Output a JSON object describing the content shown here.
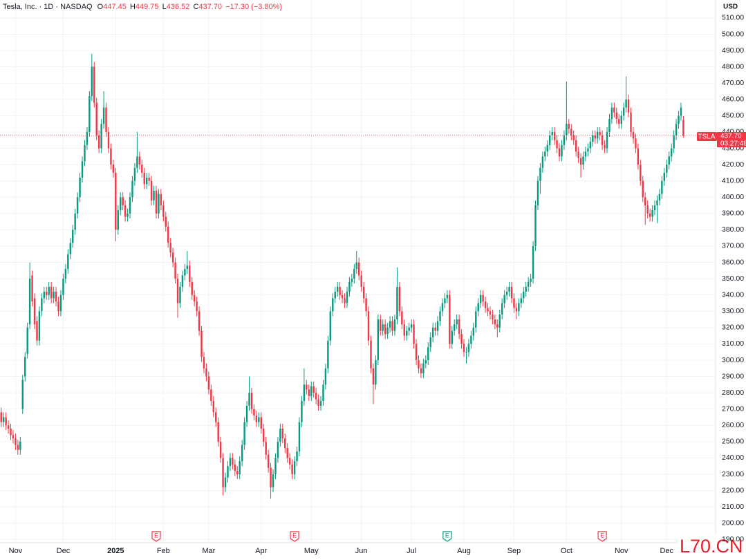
{
  "chart_data": {
    "type": "candlestick",
    "header": {
      "symbol": "Tesla, Inc. · 1D · NASDAQ",
      "o_label": "O",
      "o": "447.45",
      "h_label": "H",
      "h": "449.75",
      "l_label": "L",
      "l": "436.52",
      "c_label": "C",
      "c": "437.70",
      "change": "−17.30 (−3.80%)"
    },
    "currency": "USD",
    "price_tag": {
      "symbol": "TSLA",
      "price": "437.70",
      "countdown": "03:27:48"
    },
    "watermark": "L70.CN",
    "up_color": "#089981",
    "down_color": "#f23645",
    "open": [
      268,
      262,
      265,
      260,
      258,
      254,
      252,
      248,
      245,
      270,
      290,
      304,
      322,
      352,
      338,
      324,
      312,
      330,
      338,
      342,
      340,
      345,
      338,
      342,
      336,
      330,
      340,
      350,
      356,
      365,
      372,
      380,
      390,
      400,
      412,
      422,
      432,
      440,
      462,
      480,
      458,
      438,
      430,
      445,
      455,
      440,
      430,
      420,
      415,
      380,
      392,
      400,
      395,
      388,
      390,
      400,
      410,
      418,
      425,
      420,
      415,
      408,
      412,
      410,
      398,
      404,
      390,
      402,
      395,
      388,
      382,
      372,
      366,
      360,
      350,
      335,
      345,
      352,
      356,
      358,
      348,
      340,
      336,
      330,
      318,
      302,
      295,
      290,
      282,
      275,
      268,
      262,
      250,
      240,
      222,
      228,
      235,
      240,
      236,
      232,
      230,
      238,
      248,
      262,
      272,
      280,
      270,
      266,
      262,
      265,
      258,
      250,
      242,
      234,
      222,
      230,
      240,
      250,
      258,
      252,
      246,
      240,
      236,
      230,
      238,
      244,
      262,
      275,
      285,
      282,
      278,
      284,
      280,
      276,
      272,
      275,
      285,
      295,
      312,
      330,
      338,
      342,
      345,
      340,
      338,
      335,
      342,
      348,
      350,
      356,
      360,
      352,
      345,
      338,
      330,
      312,
      295,
      285,
      300,
      325,
      318,
      322,
      316,
      320,
      324,
      318,
      325,
      345,
      330,
      322,
      315,
      318,
      320,
      322,
      310,
      300,
      295,
      292,
      298,
      300,
      308,
      314,
      320,
      318,
      324,
      330,
      335,
      338,
      340,
      310,
      318,
      322,
      325,
      316,
      310,
      305,
      305,
      310,
      315,
      320,
      330,
      335,
      340,
      336,
      332,
      330,
      328,
      325,
      322,
      320,
      328,
      335,
      340,
      342,
      345,
      338,
      332,
      330,
      335,
      338,
      342,
      345,
      348,
      350,
      370,
      395,
      410,
      418,
      425,
      428,
      432,
      438,
      440,
      435,
      430,
      425,
      432,
      438,
      445,
      442,
      438,
      435,
      428,
      424,
      420,
      425,
      428,
      430,
      434,
      438,
      436,
      440,
      438,
      432,
      430,
      440,
      448,
      455,
      452,
      448,
      445,
      450,
      455,
      460,
      452,
      440,
      436,
      430,
      420,
      410,
      400,
      395,
      390,
      388,
      392,
      395,
      398,
      402,
      410,
      415,
      420,
      425,
      430,
      438,
      445,
      450,
      447.45
    ],
    "high": [
      271,
      268,
      268,
      263,
      261,
      257,
      255,
      251,
      253,
      291,
      305,
      323,
      360,
      355,
      341,
      327,
      333,
      341,
      345,
      345,
      348,
      348,
      345,
      345,
      339,
      343,
      353,
      359,
      368,
      375,
      383,
      393,
      403,
      415,
      425,
      435,
      443,
      465,
      488,
      483,
      461,
      441,
      448,
      465,
      458,
      443,
      433,
      423,
      418,
      395,
      403,
      403,
      398,
      393,
      403,
      413,
      421,
      440,
      428,
      423,
      418,
      415,
      415,
      413,
      407,
      407,
      405,
      405,
      398,
      391,
      385,
      375,
      369,
      363,
      353,
      348,
      355,
      359,
      367,
      361,
      351,
      343,
      339,
      333,
      321,
      305,
      298,
      293,
      285,
      278,
      271,
      265,
      253,
      243,
      231,
      238,
      243,
      243,
      239,
      235,
      241,
      251,
      265,
      275,
      290,
      283,
      273,
      269,
      268,
      268,
      261,
      253,
      245,
      237,
      233,
      243,
      253,
      261,
      261,
      255,
      249,
      243,
      239,
      241,
      247,
      265,
      278,
      295,
      288,
      285,
      287,
      287,
      283,
      279,
      278,
      288,
      298,
      315,
      333,
      341,
      345,
      348,
      348,
      343,
      341,
      345,
      351,
      353,
      359,
      367,
      363,
      355,
      348,
      341,
      333,
      315,
      298,
      303,
      328,
      328,
      325,
      325,
      323,
      327,
      327,
      328,
      357,
      348,
      333,
      325,
      321,
      323,
      325,
      325,
      313,
      303,
      298,
      301,
      303,
      311,
      317,
      323,
      323,
      327,
      333,
      338,
      341,
      343,
      343,
      321,
      325,
      328,
      328,
      319,
      313,
      308,
      313,
      318,
      323,
      333,
      338,
      343,
      343,
      339,
      335,
      333,
      331,
      328,
      325,
      331,
      338,
      343,
      345,
      348,
      348,
      341,
      335,
      338,
      341,
      345,
      348,
      351,
      353,
      373,
      398,
      413,
      421,
      428,
      431,
      435,
      441,
      443,
      443,
      438,
      433,
      435,
      441,
      471,
      448,
      445,
      441,
      438,
      431,
      427,
      428,
      431,
      433,
      437,
      441,
      441,
      443,
      443,
      441,
      435,
      443,
      451,
      458,
      458,
      455,
      451,
      453,
      458,
      474,
      463,
      455,
      443,
      439,
      433,
      423,
      413,
      403,
      398,
      393,
      395,
      398,
      401,
      405,
      413,
      418,
      423,
      428,
      433,
      441,
      448,
      453,
      458,
      449.75
    ],
    "low": [
      259,
      259,
      257,
      255,
      251,
      249,
      245,
      242,
      242,
      267,
      287,
      301,
      319,
      333,
      319,
      309,
      309,
      327,
      335,
      337,
      337,
      335,
      335,
      333,
      327,
      327,
      337,
      347,
      353,
      362,
      369,
      377,
      387,
      397,
      409,
      419,
      429,
      437,
      459,
      455,
      435,
      427,
      427,
      442,
      437,
      427,
      417,
      412,
      373,
      377,
      389,
      392,
      385,
      385,
      387,
      397,
      407,
      415,
      417,
      412,
      405,
      405,
      407,
      395,
      395,
      387,
      387,
      392,
      385,
      379,
      369,
      363,
      357,
      347,
      326,
      332,
      342,
      349,
      353,
      345,
      337,
      333,
      327,
      315,
      299,
      292,
      287,
      279,
      272,
      265,
      259,
      247,
      237,
      217,
      219,
      225,
      232,
      233,
      229,
      227,
      227,
      235,
      245,
      259,
      269,
      267,
      263,
      259,
      259,
      255,
      247,
      239,
      231,
      215,
      219,
      227,
      237,
      247,
      249,
      243,
      237,
      233,
      227,
      227,
      235,
      241,
      259,
      272,
      279,
      275,
      275,
      277,
      273,
      269,
      269,
      272,
      282,
      292,
      309,
      327,
      335,
      339,
      337,
      335,
      332,
      332,
      339,
      345,
      347,
      353,
      349,
      342,
      335,
      327,
      309,
      292,
      273,
      282,
      297,
      315,
      315,
      313,
      313,
      317,
      315,
      315,
      322,
      327,
      319,
      312,
      312,
      315,
      317,
      307,
      297,
      292,
      289,
      289,
      295,
      297,
      305,
      311,
      315,
      315,
      321,
      327,
      332,
      335,
      307,
      307,
      315,
      319,
      313,
      307,
      302,
      298,
      302,
      307,
      312,
      317,
      327,
      332,
      333,
      329,
      327,
      325,
      322,
      319,
      314,
      317,
      325,
      332,
      337,
      339,
      335,
      329,
      325,
      327,
      332,
      335,
      339,
      342,
      345,
      347,
      367,
      392,
      402,
      415,
      422,
      425,
      429,
      435,
      432,
      427,
      422,
      422,
      429,
      435,
      439,
      435,
      432,
      425,
      421,
      412,
      417,
      422,
      425,
      427,
      431,
      433,
      433,
      435,
      429,
      427,
      427,
      437,
      445,
      449,
      445,
      442,
      442,
      447,
      452,
      449,
      437,
      433,
      427,
      417,
      407,
      397,
      383,
      387,
      385,
      385,
      389,
      384,
      395,
      399,
      407,
      412,
      417,
      422,
      427,
      435,
      442,
      447,
      436.52
    ],
    "close": [
      262,
      265,
      260,
      258,
      254,
      252,
      248,
      245,
      250,
      288,
      302,
      320,
      350,
      336,
      322,
      312,
      330,
      338,
      342,
      340,
      345,
      338,
      342,
      336,
      330,
      340,
      350,
      356,
      365,
      372,
      380,
      390,
      400,
      412,
      422,
      432,
      440,
      462,
      480,
      458,
      438,
      430,
      445,
      455,
      440,
      430,
      420,
      415,
      380,
      392,
      400,
      395,
      388,
      390,
      400,
      410,
      418,
      425,
      420,
      415,
      408,
      412,
      410,
      398,
      404,
      390,
      402,
      395,
      388,
      382,
      372,
      366,
      360,
      350,
      335,
      345,
      352,
      356,
      358,
      348,
      340,
      336,
      330,
      318,
      302,
      295,
      290,
      282,
      275,
      268,
      262,
      250,
      240,
      222,
      228,
      235,
      240,
      236,
      232,
      230,
      238,
      248,
      262,
      272,
      280,
      270,
      266,
      262,
      265,
      258,
      250,
      242,
      234,
      222,
      230,
      240,
      250,
      258,
      252,
      246,
      240,
      236,
      230,
      238,
      244,
      262,
      275,
      285,
      282,
      278,
      284,
      280,
      276,
      272,
      275,
      285,
      295,
      312,
      330,
      338,
      342,
      345,
      340,
      338,
      335,
      342,
      348,
      350,
      356,
      360,
      352,
      345,
      338,
      330,
      312,
      295,
      285,
      300,
      325,
      318,
      322,
      316,
      320,
      324,
      318,
      325,
      345,
      330,
      322,
      315,
      318,
      320,
      322,
      310,
      300,
      295,
      292,
      298,
      300,
      308,
      314,
      320,
      318,
      324,
      330,
      335,
      338,
      340,
      310,
      318,
      322,
      325,
      316,
      310,
      305,
      305,
      310,
      315,
      320,
      330,
      335,
      340,
      336,
      332,
      330,
      328,
      325,
      322,
      320,
      328,
      335,
      340,
      342,
      345,
      338,
      332,
      330,
      335,
      338,
      342,
      345,
      348,
      350,
      370,
      395,
      410,
      418,
      425,
      428,
      432,
      438,
      440,
      435,
      430,
      425,
      432,
      438,
      445,
      442,
      438,
      435,
      428,
      424,
      420,
      425,
      428,
      430,
      434,
      438,
      436,
      440,
      438,
      432,
      430,
      440,
      448,
      455,
      452,
      448,
      445,
      450,
      455,
      460,
      452,
      440,
      436,
      430,
      420,
      410,
      400,
      395,
      390,
      388,
      392,
      395,
      398,
      402,
      410,
      415,
      420,
      425,
      430,
      438,
      445,
      450,
      455,
      437.7
    ],
    "xlim": [
      -0.5,
      299.5
    ],
    "xticks": [
      {
        "value": 6,
        "label": "Nov"
      },
      {
        "value": 26,
        "label": "Dec"
      },
      {
        "value": 48,
        "label": "2025"
      },
      {
        "value": 68,
        "label": "Feb"
      },
      {
        "value": 87,
        "label": "Mar"
      },
      {
        "value": 109,
        "label": "Apr"
      },
      {
        "value": 130,
        "label": "May"
      },
      {
        "value": 151,
        "label": "Jun"
      },
      {
        "value": 172,
        "label": "Jul"
      },
      {
        "value": 194,
        "label": "Aug"
      },
      {
        "value": 215,
        "label": "Sep"
      },
      {
        "value": 237,
        "label": "Oct"
      },
      {
        "value": 260,
        "label": "Nov"
      },
      {
        "value": 279,
        "label": "Dec"
      }
    ],
    "ylim": [
      188,
      521
    ],
    "yticks": [
      {
        "value": 190,
        "label": "190.00"
      },
      {
        "value": 200,
        "label": "200.00"
      },
      {
        "value": 210,
        "label": "210.00"
      },
      {
        "value": 220,
        "label": "220.00"
      },
      {
        "value": 230,
        "label": "230.00"
      },
      {
        "value": 240,
        "label": "240.00"
      },
      {
        "value": 250,
        "label": "250.00"
      },
      {
        "value": 260,
        "label": "260.00"
      },
      {
        "value": 270,
        "label": "270.00"
      },
      {
        "value": 280,
        "label": "280.00"
      },
      {
        "value": 290,
        "label": "290.00"
      },
      {
        "value": 300,
        "label": "300.00"
      },
      {
        "value": 310,
        "label": "310.00"
      },
      {
        "value": 320,
        "label": "320.00"
      },
      {
        "value": 330,
        "label": "330.00"
      },
      {
        "value": 340,
        "label": "340.00"
      },
      {
        "value": 350,
        "label": "350.00"
      },
      {
        "value": 360,
        "label": "360.00"
      },
      {
        "value": 370,
        "label": "370.00"
      },
      {
        "value": 380,
        "label": "380.00"
      },
      {
        "value": 390,
        "label": "390.00"
      },
      {
        "value": 400,
        "label": "400.00"
      },
      {
        "value": 410,
        "label": "410.00"
      },
      {
        "value": 420,
        "label": "420.00"
      },
      {
        "value": 430,
        "label": "430.00"
      },
      {
        "value": 440,
        "label": "440.00"
      },
      {
        "value": 450,
        "label": "450.00"
      },
      {
        "value": 460,
        "label": "460.00"
      },
      {
        "value": 470,
        "label": "470.00"
      },
      {
        "value": 480,
        "label": "480.00"
      },
      {
        "value": 490,
        "label": "490.00"
      },
      {
        "value": 500,
        "label": "500.00"
      },
      {
        "value": 510,
        "label": "510.00"
      }
    ],
    "grid": true,
    "events": [
      {
        "x": 65,
        "label": "E",
        "color": "#f23645"
      },
      {
        "x": 123,
        "label": "E",
        "color": "#f23645"
      },
      {
        "x": 187,
        "label": "E",
        "color": "#089981"
      },
      {
        "x": 252,
        "label": "E",
        "color": "#f23645"
      }
    ]
  }
}
